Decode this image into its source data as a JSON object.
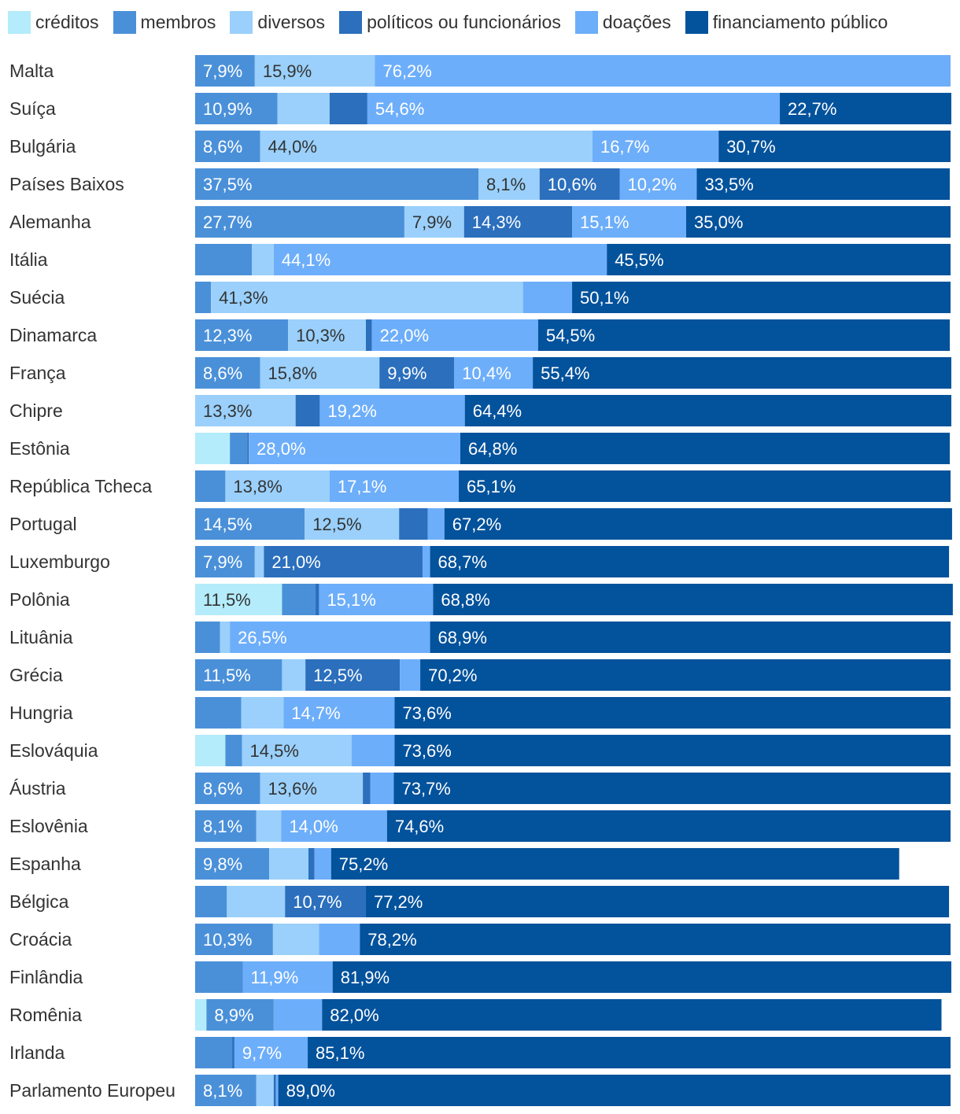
{
  "chart_data": {
    "type": "bar",
    "orientation": "horizontal",
    "stacked": true,
    "percent": true,
    "legend_position": "top",
    "grid": false,
    "categories": [
      "Malta",
      "Suíça",
      "Bulgária",
      "Países Baixos",
      "Alemanha",
      "Itália",
      "Suécia",
      "Dinamarca",
      "França",
      "Chipre",
      "Estônia",
      "República Tcheca",
      "Portugal",
      "Luxemburgo",
      "Polônia",
      "Lituânia",
      "Grécia",
      "Hungria",
      "Eslováquia",
      "Áustria",
      "Eslovênia",
      "Espanha",
      "Bélgica",
      "Croácia",
      "Finlândia",
      "Romênia",
      "Irlanda",
      "Parlamento Europeu"
    ],
    "series": [
      {
        "name": "créditos",
        "color": "#b4ecfb",
        "values": [
          0,
          0,
          0,
          0,
          0,
          0,
          0,
          0,
          0,
          0,
          4.6,
          0,
          0,
          0,
          11.5,
          0,
          0,
          0,
          4.0,
          0,
          0,
          0,
          0,
          0,
          0,
          1.5,
          0,
          0
        ]
      },
      {
        "name": "membros",
        "color": "#4a90d9",
        "values": [
          7.9,
          10.9,
          8.6,
          37.5,
          27.7,
          7.5,
          2.1,
          12.3,
          8.6,
          0,
          2.3,
          4.0,
          14.5,
          7.9,
          4.4,
          3.3,
          11.5,
          6.1,
          2.2,
          8.6,
          8.1,
          9.8,
          4.2,
          10.3,
          6.3,
          8.9,
          4.9,
          8.1
        ]
      },
      {
        "name": "diversos",
        "color": "#9ad0fb",
        "values": [
          15.9,
          6.9,
          44.0,
          8.1,
          7.9,
          2.9,
          41.3,
          10.3,
          15.8,
          13.3,
          0,
          13.8,
          12.5,
          1.2,
          0,
          1.3,
          3.1,
          5.6,
          14.5,
          13.6,
          3.3,
          5.2,
          7.7,
          6.1,
          0,
          0,
          0,
          2.3
        ]
      },
      {
        "name": "políticos ou funcionários",
        "color": "#2b6fbd",
        "values": [
          0,
          5.0,
          0,
          10.6,
          14.3,
          0,
          0,
          0.8,
          9.9,
          3.2,
          0.2,
          0,
          3.8,
          21.0,
          0.5,
          0,
          12.5,
          0,
          0,
          1.0,
          0,
          0.8,
          10.7,
          0,
          0,
          0,
          0.3,
          0.3
        ]
      },
      {
        "name": "doações",
        "color": "#6daefa",
        "values": [
          76.2,
          54.6,
          16.7,
          10.2,
          15.1,
          44.1,
          6.5,
          22.0,
          10.4,
          19.2,
          28.0,
          17.1,
          2.2,
          1.0,
          15.1,
          26.5,
          2.7,
          14.7,
          5.7,
          3.1,
          14.0,
          2.2,
          0,
          5.4,
          11.9,
          6.4,
          9.7,
          0.3
        ]
      },
      {
        "name": "financiamento público",
        "color": "#03529c",
        "values": [
          0,
          22.7,
          30.7,
          33.5,
          35.0,
          45.5,
          50.1,
          54.5,
          55.4,
          64.4,
          64.8,
          65.1,
          67.2,
          68.7,
          68.8,
          68.9,
          70.2,
          73.6,
          73.6,
          73.7,
          74.6,
          75.2,
          77.2,
          78.2,
          81.9,
          82.0,
          85.1,
          89.0
        ]
      }
    ],
    "data_labels": [
      [
        "",
        "7,9%",
        "15,9%",
        "",
        "76,2%",
        ""
      ],
      [
        "",
        "10,9%",
        "",
        "",
        "54,6%",
        "22,7%"
      ],
      [
        "",
        "8,6%",
        "44,0%",
        "",
        "16,7%",
        "30,7%"
      ],
      [
        "",
        "37,5%",
        "8,1%",
        "10,6%",
        "10,2%",
        "33,5%"
      ],
      [
        "",
        "27,7%",
        "7,9%",
        "14,3%",
        "15,1%",
        "35,0%"
      ],
      [
        "",
        "",
        "",
        "",
        "44,1%",
        "45,5%"
      ],
      [
        "",
        "",
        "41,3%",
        "",
        "",
        "50,1%"
      ],
      [
        "",
        "12,3%",
        "10,3%",
        "",
        "22,0%",
        "54,5%"
      ],
      [
        "",
        "8,6%",
        "15,8%",
        "9,9%",
        "10,4%",
        "55,4%"
      ],
      [
        "",
        "",
        "13,3%",
        "",
        "19,2%",
        "64,4%"
      ],
      [
        "",
        "",
        "",
        "",
        "28,0%",
        "64,8%"
      ],
      [
        "",
        "",
        "13,8%",
        "",
        "17,1%",
        "65,1%"
      ],
      [
        "",
        "14,5%",
        "12,5%",
        "",
        "",
        "67,2%"
      ],
      [
        "",
        "7,9%",
        "",
        "21,0%",
        "",
        "68,7%"
      ],
      [
        "11,5%",
        "",
        "",
        "",
        "15,1%",
        "68,8%"
      ],
      [
        "",
        "",
        "",
        "",
        "26,5%",
        "68,9%"
      ],
      [
        "",
        "11,5%",
        "",
        "12,5%",
        "",
        "70,2%"
      ],
      [
        "",
        "",
        "",
        "",
        "14,7%",
        "73,6%"
      ],
      [
        "",
        "",
        "14,5%",
        "",
        "",
        "73,6%"
      ],
      [
        "",
        "8,6%",
        "13,6%",
        "",
        "",
        "73,7%"
      ],
      [
        "",
        "8,1%",
        "",
        "",
        "14,0%",
        "74,6%"
      ],
      [
        "",
        "9,8%",
        "",
        "",
        "",
        "75,2%"
      ],
      [
        "",
        "",
        "",
        "10,7%",
        "",
        "77,2%"
      ],
      [
        "",
        "10,3%",
        "",
        "",
        "",
        "78,2%"
      ],
      [
        "",
        "",
        "",
        "",
        "11,9%",
        "81,9%"
      ],
      [
        "",
        "8,9%",
        "",
        "",
        "",
        "82,0%"
      ],
      [
        "",
        "",
        "",
        "",
        "9,7%",
        "85,1%"
      ],
      [
        "",
        "8,1%",
        "",
        "",
        "",
        "89,0%"
      ]
    ],
    "xlim": [
      0,
      100
    ]
  }
}
